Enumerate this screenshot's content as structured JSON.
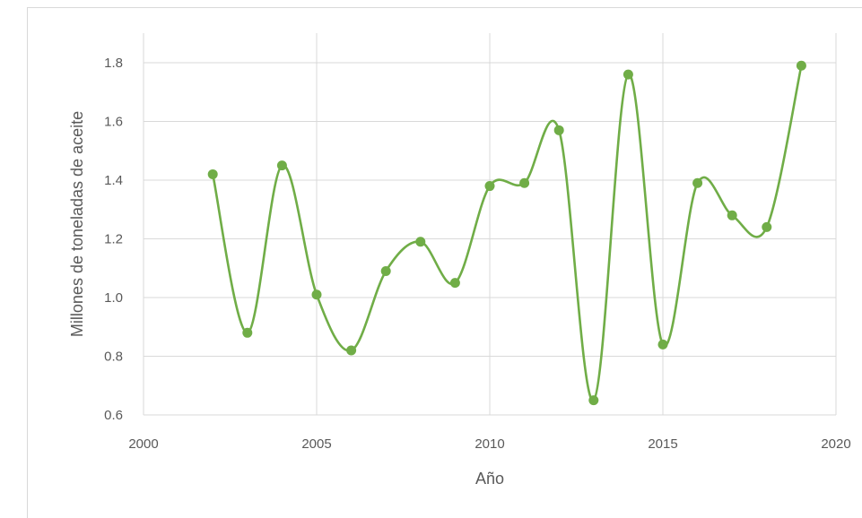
{
  "chart_data": {
    "type": "line",
    "title": "",
    "xlabel": "Año",
    "ylabel": "Millones de toneladas de aceite",
    "xlim": [
      2000,
      2020
    ],
    "ylim": [
      0.6,
      1.9
    ],
    "xticks": [
      2000,
      2005,
      2010,
      2015,
      2020
    ],
    "yticks": [
      0.6,
      0.8,
      1.0,
      1.2,
      1.4,
      1.6,
      1.8
    ],
    "ytick_labels": [
      "0.6",
      "0.8",
      "1.0",
      "1.2",
      "1.4",
      "1.6",
      "1.8"
    ],
    "grid": true,
    "smooth": true,
    "series": [
      {
        "color": "#70ad47",
        "x": [
          2002,
          2003,
          2004,
          2005,
          2006,
          2007,
          2008,
          2009,
          2010,
          2011,
          2012,
          2013,
          2014,
          2015,
          2016,
          2017,
          2018,
          2019
        ],
        "y": [
          1.42,
          0.88,
          1.45,
          1.01,
          0.82,
          1.09,
          1.19,
          1.05,
          1.38,
          1.39,
          1.57,
          0.65,
          1.76,
          0.84,
          1.39,
          1.28,
          1.24,
          1.79
        ]
      }
    ]
  }
}
